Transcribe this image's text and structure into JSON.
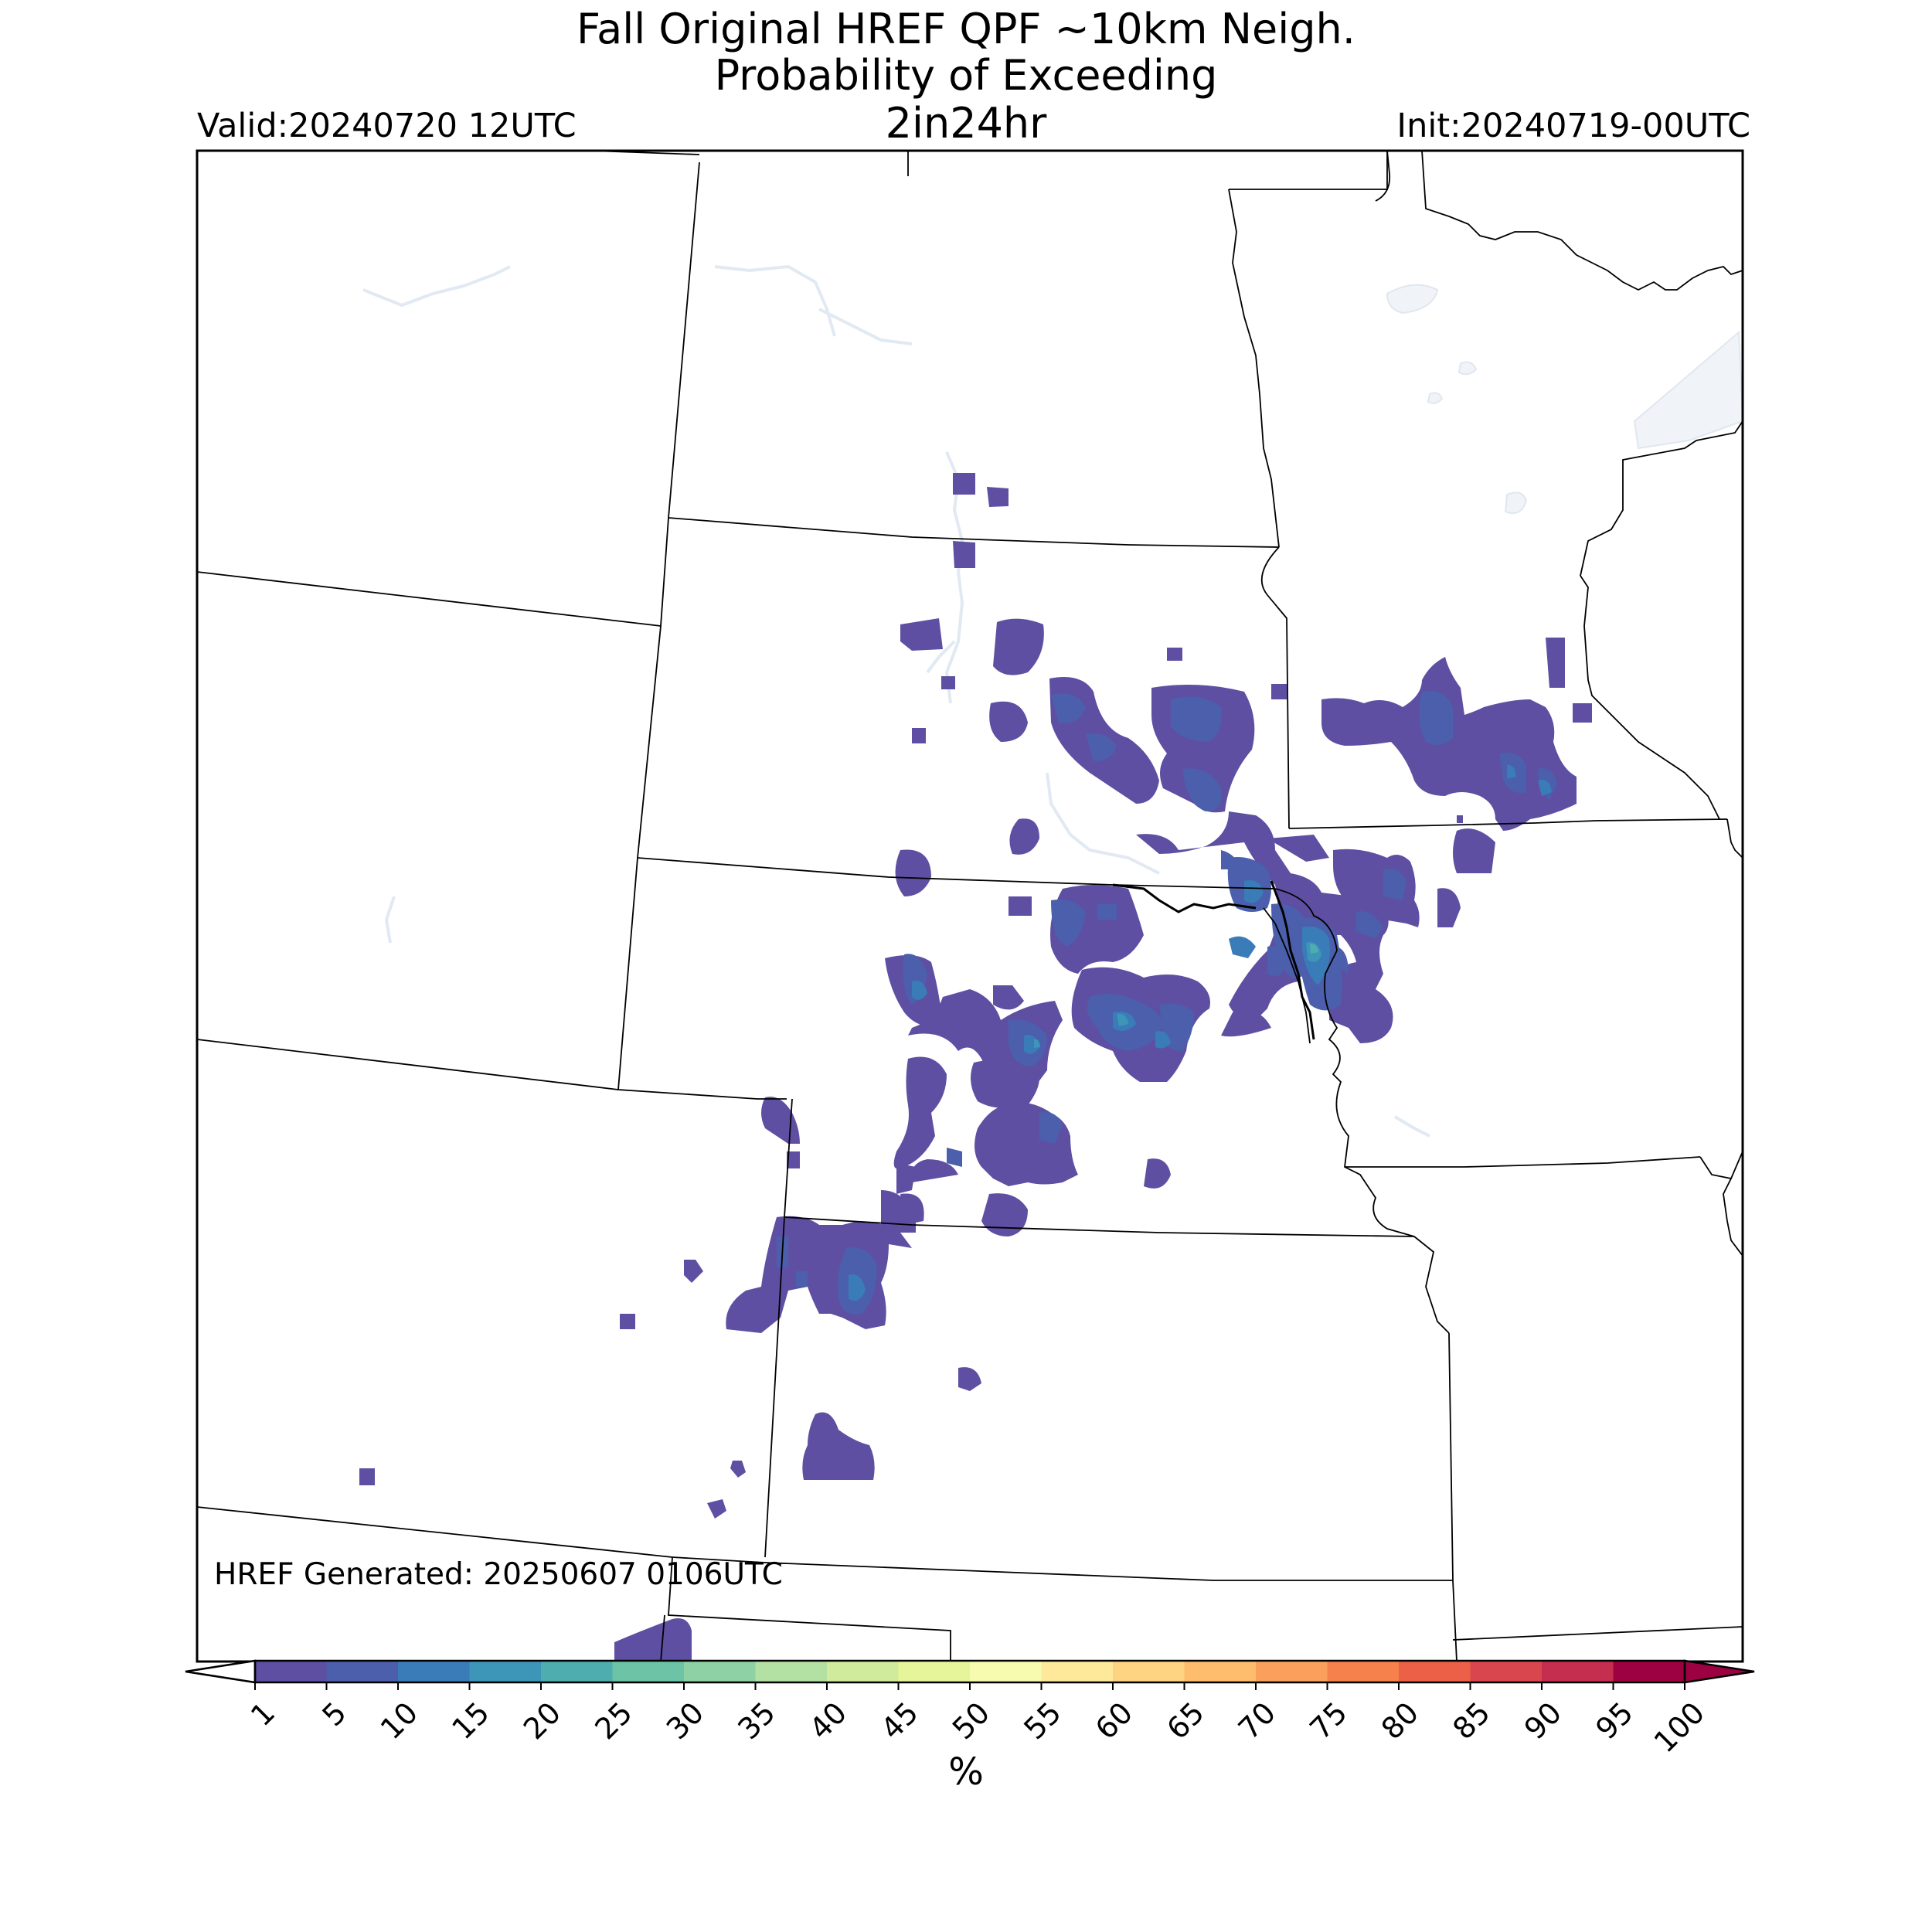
{
  "title": {
    "line1": "Fall Original HREF QPF ~10km Neigh.",
    "line2": "Probability of Exceeding",
    "line3": "2in24hr"
  },
  "valid": "Valid:20240720 12UTC",
  "init": "Init:20240719-00UTC",
  "generated": "HREF Generated: 20250607 0106UTC",
  "colorbar": {
    "label": "%",
    "ticks": [
      "1",
      "5",
      "10",
      "15",
      "20",
      "25",
      "30",
      "35",
      "40",
      "45",
      "50",
      "55",
      "60",
      "65",
      "70",
      "75",
      "80",
      "85",
      "90",
      "95",
      "100"
    ],
    "colors": [
      "#5e4fa2",
      "#4b5fac",
      "#3a7cb7",
      "#3d95b8",
      "#4eadaf",
      "#6cc3a5",
      "#8ed1a4",
      "#b3e0a3",
      "#cfeb9b",
      "#e7f59a",
      "#f7fbb0",
      "#fee89a",
      "#fed382",
      "#fdbd6c",
      "#fba05c",
      "#f7814c",
      "#eb6046",
      "#da464d",
      "#c52e4e",
      "#9e0142"
    ],
    "under_color": "#ffffff",
    "over_color": "#9e0142"
  },
  "map": {
    "fill_colors": {
      "p1": "#5e4fa2",
      "p5": "#4b5fac",
      "p10": "#3a7cb7",
      "p15": "#3d95b8",
      "p20": "#4eadaf",
      "water": "#f0f4f9"
    }
  }
}
